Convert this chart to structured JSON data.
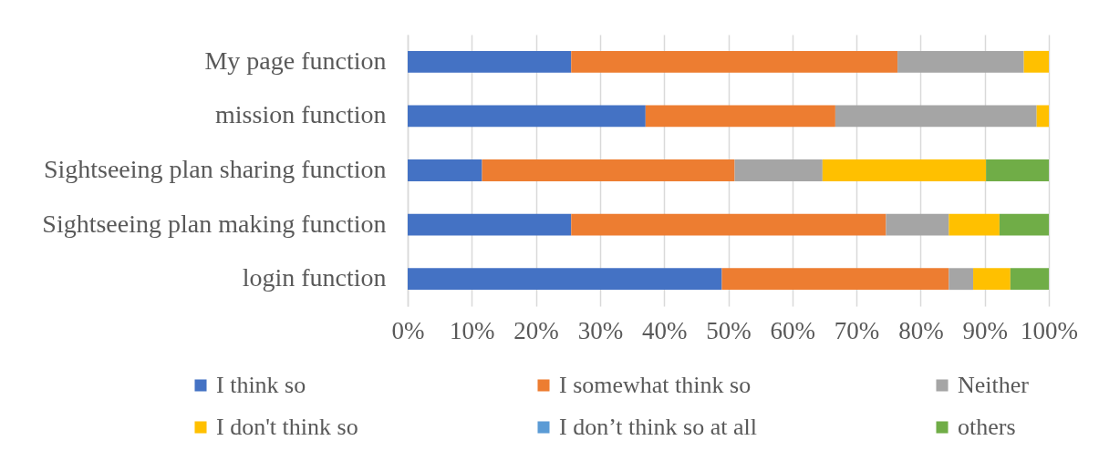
{
  "chart_data": {
    "type": "bar",
    "orientation": "horizontal",
    "stacked": true,
    "categories": [
      "My page function",
      "mission function",
      "Sightseeing plan sharing function",
      "Sightseeing plan making function",
      "login function"
    ],
    "series": [
      {
        "name": "I think so",
        "color": "#4472c4",
        "values": [
          25.5,
          37.1,
          11.6,
          25.5,
          49.0
        ]
      },
      {
        "name": "I somewhat think so",
        "color": "#ed7d31",
        "values": [
          50.9,
          29.6,
          39.4,
          49.1,
          35.4
        ]
      },
      {
        "name": "Neither",
        "color": "#a5a5a5",
        "values": [
          19.7,
          31.4,
          13.7,
          9.8,
          3.8
        ]
      },
      {
        "name": "I don't think so",
        "color": "#ffc000",
        "values": [
          3.9,
          1.9,
          25.5,
          7.9,
          5.8
        ]
      },
      {
        "name": "I don’t think so at all",
        "color": "#5b9bd5",
        "values": [
          0,
          0,
          0,
          0,
          0
        ]
      },
      {
        "name": "others",
        "color": "#70ad47",
        "values": [
          0,
          0,
          9.8,
          7.7,
          6.0
        ]
      }
    ],
    "xlim": [
      0,
      100
    ],
    "xticks": [
      {
        "value": 0,
        "label": "0%"
      },
      {
        "value": 10,
        "label": "10%"
      },
      {
        "value": 20,
        "label": "20%"
      },
      {
        "value": 30,
        "label": "30%"
      },
      {
        "value": 40,
        "label": "40%"
      },
      {
        "value": 50,
        "label": "50%"
      },
      {
        "value": 60,
        "label": "60%"
      },
      {
        "value": 70,
        "label": "70%"
      },
      {
        "value": 80,
        "label": "80%"
      },
      {
        "value": 90,
        "label": "90%"
      },
      {
        "value": 100,
        "label": "100%"
      }
    ],
    "grid": "x",
    "legend": "bottom"
  }
}
